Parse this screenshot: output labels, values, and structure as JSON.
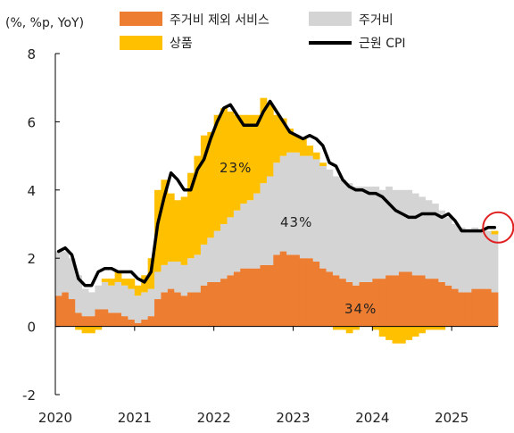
{
  "chart_data": {
    "type": "area",
    "unit_label": "(%, %p, YoY)",
    "x_tick_labels": [
      "2020",
      "2021",
      "2022",
      "2023",
      "2024",
      "2025"
    ],
    "y_tick_labels": [
      "8",
      "6",
      "4",
      "2",
      "0",
      "-2"
    ],
    "ylim": [
      -2,
      8
    ],
    "x_start": "2020-01",
    "legend": [
      {
        "key": "services_ex_housing",
        "label": "주거비 제외 서비스",
        "color": "#ed7d31",
        "kind": "box"
      },
      {
        "key": "housing",
        "label": "주거비",
        "color": "#d4d4d4",
        "kind": "box"
      },
      {
        "key": "goods",
        "label": "상품",
        "color": "#ffc000",
        "kind": "box"
      },
      {
        "key": "core_cpi",
        "label": "근원 CPI",
        "color": "#000000",
        "kind": "line"
      }
    ],
    "annotations": [
      {
        "label": "23%",
        "series": "goods"
      },
      {
        "label": "43%",
        "series": "housing"
      },
      {
        "label": "34%",
        "series": "services_ex_housing"
      }
    ],
    "highlight_color": "#e02020",
    "series": [
      {
        "name": "주거비 제외 서비스",
        "key": "services_ex_housing",
        "color": "#ed7d31",
        "values": [
          0.9,
          1.0,
          0.8,
          0.4,
          0.3,
          0.3,
          0.5,
          0.5,
          0.4,
          0.4,
          0.3,
          0.2,
          0.1,
          0.2,
          0.3,
          0.8,
          1.0,
          1.1,
          1.0,
          0.9,
          1.0,
          1.0,
          1.2,
          1.3,
          1.3,
          1.4,
          1.5,
          1.6,
          1.7,
          1.7,
          1.7,
          1.8,
          1.8,
          2.1,
          2.2,
          2.1,
          2.1,
          2.0,
          2.0,
          1.9,
          1.7,
          1.6,
          1.5,
          1.4,
          1.3,
          1.2,
          1.3,
          1.3,
          1.4,
          1.4,
          1.5,
          1.5,
          1.6,
          1.6,
          1.5,
          1.5,
          1.4,
          1.4,
          1.3,
          1.2,
          1.1,
          1.0,
          1.0,
          1.1,
          1.1,
          1.1,
          1.0
        ]
      },
      {
        "name": "주거비",
        "key": "housing",
        "color": "#d4d4d4",
        "values": [
          1.3,
          1.2,
          1.2,
          1.1,
          0.8,
          0.7,
          0.7,
          0.8,
          0.8,
          0.9,
          0.9,
          0.9,
          0.8,
          0.8,
          0.8,
          0.8,
          0.8,
          0.8,
          0.9,
          0.9,
          1.0,
          1.1,
          1.2,
          1.3,
          1.5,
          1.6,
          1.7,
          1.8,
          1.9,
          2.0,
          2.2,
          2.4,
          2.6,
          2.7,
          2.8,
          3.0,
          3.0,
          3.0,
          3.0,
          3.0,
          3.0,
          3.0,
          2.9,
          2.9,
          2.9,
          2.9,
          2.8,
          2.8,
          2.7,
          2.6,
          2.6,
          2.5,
          2.4,
          2.4,
          2.4,
          2.3,
          2.3,
          2.2,
          2.1,
          2.0,
          1.9,
          1.9,
          1.8,
          1.8,
          1.7,
          1.7,
          1.7
        ]
      },
      {
        "name": "상품",
        "key": "goods",
        "color": "#ffc000",
        "values": [
          0.0,
          0.0,
          0.0,
          -0.1,
          -0.2,
          -0.2,
          -0.1,
          0.1,
          0.2,
          0.3,
          0.2,
          0.3,
          0.3,
          0.5,
          0.9,
          2.4,
          2.5,
          2.0,
          1.8,
          2.0,
          2.5,
          2.9,
          3.2,
          3.1,
          3.4,
          3.4,
          3.1,
          2.8,
          2.6,
          2.5,
          2.3,
          2.5,
          2.1,
          1.4,
          1.1,
          0.7,
          0.5,
          0.5,
          0.3,
          0.2,
          0.1,
          0.0,
          -0.1,
          -0.1,
          -0.2,
          -0.1,
          0.0,
          0.0,
          -0.1,
          -0.3,
          -0.4,
          -0.5,
          -0.5,
          -0.4,
          -0.3,
          -0.2,
          -0.1,
          -0.1,
          -0.1,
          0.0,
          0.0,
          0.0,
          0.0,
          0.0,
          0.0,
          0.0,
          0.1
        ]
      },
      {
        "name": "근원 CPI",
        "key": "core_cpi",
        "color": "#000000",
        "values": [
          2.2,
          2.3,
          2.1,
          1.4,
          1.2,
          1.2,
          1.6,
          1.7,
          1.7,
          1.6,
          1.6,
          1.6,
          1.4,
          1.3,
          1.6,
          3.0,
          3.8,
          4.5,
          4.3,
          4.0,
          4.0,
          4.6,
          4.9,
          5.5,
          6.0,
          6.4,
          6.5,
          6.2,
          5.9,
          5.9,
          5.9,
          6.3,
          6.6,
          6.3,
          6.0,
          5.7,
          5.6,
          5.5,
          5.6,
          5.5,
          5.3,
          4.8,
          4.7,
          4.3,
          4.1,
          4.0,
          4.0,
          3.9,
          3.9,
          3.8,
          3.6,
          3.4,
          3.3,
          3.2,
          3.2,
          3.3,
          3.3,
          3.3,
          3.2,
          3.3,
          3.1,
          2.8,
          2.8,
          2.8,
          2.8,
          2.9,
          2.9
        ]
      }
    ]
  }
}
